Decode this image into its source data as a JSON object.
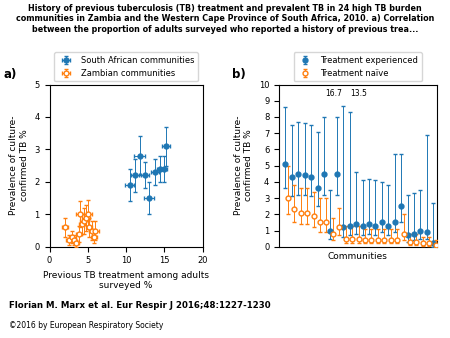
{
  "title": "History of previous tuberculosis (TB) treatment and prevalent TB in 24 high TB burden\ncommunities in Zambia and the Western Cape Province of South Africa, 2010. a) Correlation\nbetween the proportion of adults surveyed who reported a history of previous trea...",
  "annotations": [
    {
      "text": "Florian M. Marx et al. Eur Respir J 2016;48:1227-1230"
    },
    {
      "text": "©2016 by European Respiratory Society"
    }
  ],
  "chart_data": [
    {
      "type": "scatter",
      "title": "a)",
      "x_label": "Previous TB treatment among adults\nsurveyed %",
      "y_label": "Prevalence of culture-\nconfirmed TB %",
      "xlim": [
        0,
        20
      ],
      "ylim": [
        0,
        5
      ],
      "xticks": [
        0,
        5,
        10,
        15,
        20
      ],
      "yticks": [
        0,
        1,
        2,
        3,
        4,
        5
      ],
      "grid": false,
      "legend": "above",
      "series": [
        {
          "name": "South African communities",
          "marker": "filled circle",
          "x": [
            10.5,
            11.2,
            11.8,
            12.5,
            13.0,
            13.8,
            14.5,
            15.0,
            15.2
          ],
          "values": [
            1.9,
            2.2,
            2.8,
            2.2,
            1.5,
            2.3,
            2.4,
            2.4,
            3.1
          ],
          "x_err": [
            0.6,
            0.5,
            0.7,
            0.5,
            0.6,
            0.5,
            0.5,
            0.4,
            0.5
          ],
          "y_err": [
            0.5,
            0.5,
            0.6,
            0.4,
            0.5,
            0.4,
            0.4,
            0.4,
            0.6
          ]
        },
        {
          "name": "Zambian communities",
          "marker": "open circle",
          "x": [
            2.0,
            2.5,
            3.0,
            3.2,
            3.5,
            3.8,
            4.0,
            4.2,
            4.5,
            4.8,
            5.0,
            5.2,
            5.5,
            5.8,
            6.0
          ],
          "values": [
            0.6,
            0.2,
            0.3,
            0.2,
            0.1,
            0.4,
            1.0,
            0.7,
            0.8,
            0.9,
            1.0,
            0.6,
            0.5,
            0.3,
            0.5
          ],
          "x_err": [
            0.4,
            0.3,
            0.4,
            0.3,
            0.3,
            0.4,
            0.5,
            0.4,
            0.5,
            0.5,
            0.5,
            0.4,
            0.4,
            0.4,
            0.5
          ],
          "y_err": [
            0.3,
            0.15,
            0.2,
            0.15,
            0.1,
            0.25,
            0.4,
            0.3,
            0.4,
            0.4,
            0.45,
            0.3,
            0.3,
            0.2,
            0.3
          ]
        }
      ]
    },
    {
      "type": "scatter",
      "title": "b)",
      "x_label": "Communities",
      "y_label": "Prevalence of culture-\nconfirmed TB %",
      "xlim": [
        0.0,
        24.5
      ],
      "ylim": [
        0,
        10
      ],
      "yticks": [
        0,
        1,
        2,
        3,
        4,
        5,
        6,
        7,
        8,
        9,
        10
      ],
      "tick_labels": "y",
      "grid": false,
      "legend": "above",
      "annotations": [
        {
          "text": "16.7",
          "x": 9.8,
          "y": 9.7
        },
        {
          "text": "13.5",
          "x": 11.0,
          "y": 9.7
        }
      ],
      "series": [
        {
          "name": "Treatment experienced",
          "marker": "filled circle",
          "x": [
            1,
            2,
            3,
            4,
            5,
            6,
            7,
            8,
            9,
            10,
            11,
            12,
            13,
            14,
            15,
            16,
            17,
            18,
            19,
            20,
            21,
            22,
            23,
            24
          ],
          "values": [
            5.1,
            4.3,
            4.5,
            4.4,
            4.3,
            3.6,
            4.5,
            1.0,
            4.5,
            1.2,
            1.3,
            1.4,
            1.3,
            1.4,
            1.3,
            1.5,
            1.3,
            1.5,
            2.5,
            0.7,
            0.8,
            1.0,
            0.9,
            0.2
          ],
          "y_err_lower": [
            1.5,
            1.2,
            1.3,
            1.2,
            1.2,
            1.1,
            1.3,
            0.5,
            1.3,
            0.6,
            0.6,
            0.6,
            0.6,
            0.6,
            0.6,
            0.6,
            0.6,
            0.6,
            1.0,
            0.4,
            0.4,
            0.5,
            0.4,
            0.2
          ],
          "y_err_upper": [
            3.5,
            3.2,
            3.2,
            3.2,
            3.2,
            3.5,
            3.5,
            2.5,
            3.5,
            7.5,
            7.0,
            3.2,
            2.8,
            2.8,
            2.8,
            2.5,
            2.5,
            4.2,
            3.2,
            2.5,
            2.5,
            2.5,
            6.0,
            2.5
          ]
        },
        {
          "name": "Treatment naïve",
          "marker": "open circle",
          "x": [
            1,
            2,
            3,
            4,
            5,
            6,
            7,
            8,
            9,
            10,
            11,
            12,
            13,
            14,
            15,
            16,
            17,
            18,
            19,
            20,
            21,
            22,
            23,
            24
          ],
          "values": [
            3.0,
            2.3,
            2.1,
            2.1,
            1.9,
            1.5,
            1.5,
            0.8,
            1.2,
            0.5,
            0.5,
            0.5,
            0.4,
            0.4,
            0.4,
            0.4,
            0.4,
            0.4,
            0.8,
            0.3,
            0.3,
            0.2,
            0.2,
            0.1
          ],
          "y_err_lower": [
            1.0,
            0.8,
            0.7,
            0.7,
            0.7,
            0.6,
            0.6,
            0.4,
            0.5,
            0.3,
            0.3,
            0.3,
            0.2,
            0.2,
            0.2,
            0.2,
            0.2,
            0.2,
            0.4,
            0.2,
            0.2,
            0.15,
            0.15,
            0.1
          ],
          "y_err_upper": [
            2.0,
            1.5,
            1.5,
            1.5,
            1.5,
            1.5,
            1.5,
            1.0,
            1.2,
            0.8,
            0.8,
            0.8,
            0.7,
            0.7,
            0.7,
            0.7,
            0.7,
            0.7,
            1.2,
            0.5,
            0.5,
            0.4,
            0.4,
            0.3
          ]
        }
      ]
    }
  ]
}
